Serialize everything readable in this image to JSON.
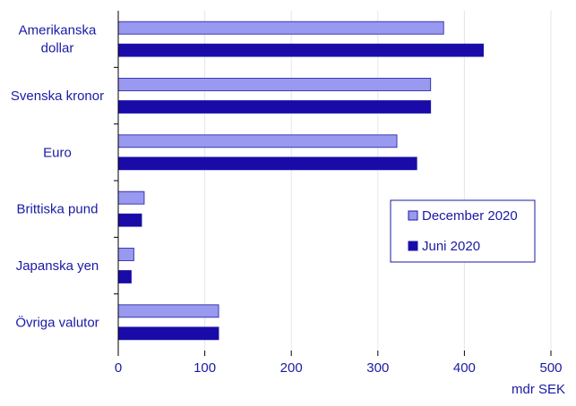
{
  "chart_data": {
    "type": "bar",
    "orientation": "horizontal",
    "categories": [
      "Amerikanska dollar",
      "Svenska kronor",
      "Euro",
      "Brittiska pund",
      "Japanska yen",
      "Övriga valutor"
    ],
    "category_lines": [
      [
        "Amerikanska",
        "dollar"
      ],
      [
        "Svenska kronor"
      ],
      [
        "Euro"
      ],
      [
        "Brittiska pund"
      ],
      [
        "Japanska yen"
      ],
      [
        "Övriga valutor"
      ]
    ],
    "series": [
      {
        "name": "December 2020",
        "color": "#9999f0",
        "values": [
          376,
          361,
          322,
          30,
          18,
          116
        ]
      },
      {
        "name": "Juni 2020",
        "color": "#1a0aa8",
        "values": [
          422,
          361,
          345,
          27,
          15,
          116
        ]
      }
    ],
    "x_ticks": [
      0,
      100,
      200,
      300,
      400,
      500
    ],
    "xlim": [
      0,
      500
    ],
    "xlabel": "mdr SEK",
    "grid": "vertical",
    "legend_position": "right"
  }
}
